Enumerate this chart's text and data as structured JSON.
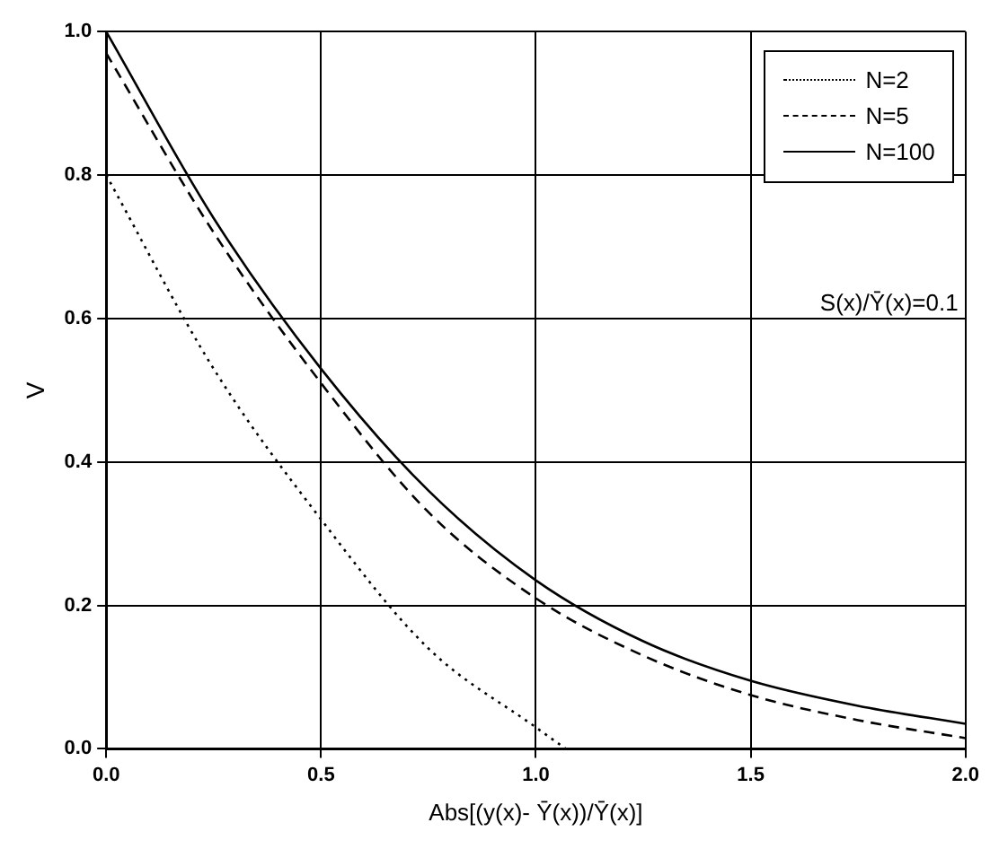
{
  "chart_data": {
    "type": "line",
    "xlabel": "Abs[(y(x)- Ȳ(x))/Ȳ(x)]",
    "ylabel": "V",
    "annotations": [
      "S(x)/Ȳ(x)=0.1"
    ],
    "xlim": [
      0,
      2
    ],
    "ylim": [
      0,
      1
    ],
    "xticks": [
      {
        "value": 0,
        "label": "0.0"
      },
      {
        "value": 0.5,
        "label": "0.5"
      },
      {
        "value": 1,
        "label": "1.0"
      },
      {
        "value": 1.5,
        "label": "1.5"
      },
      {
        "value": 2,
        "label": "2.0"
      }
    ],
    "yticks": [
      {
        "value": 0,
        "label": "0.0"
      },
      {
        "value": 0.2,
        "label": "0.2"
      },
      {
        "value": 0.4,
        "label": "0.4"
      },
      {
        "value": 0.6,
        "label": "0.6"
      },
      {
        "value": 0.8,
        "label": "0.8"
      },
      {
        "value": 1,
        "label": "1.0"
      }
    ],
    "grid": true,
    "legend": "top right",
    "marker": "none",
    "series": [
      {
        "name": "N=2",
        "color": "#000000",
        "line_style": "dotted",
        "x": [
          0,
          0.25,
          0.5,
          0.75,
          1.0,
          1.07
        ],
        "values": [
          0.8,
          0.53,
          0.32,
          0.14,
          0.03,
          0
        ]
      },
      {
        "name": "N=5",
        "color": "#000000",
        "line_style": "dashed",
        "x": [
          0,
          0.25,
          0.5,
          0.75,
          1.0,
          1.25,
          1.5,
          1.75,
          2.0
        ],
        "values": [
          0.97,
          0.72,
          0.51,
          0.33,
          0.21,
          0.13,
          0.075,
          0.04,
          0.015
        ]
      },
      {
        "name": "N=100",
        "color": "#000000",
        "line_style": "solid",
        "x": [
          0,
          0.25,
          0.5,
          0.75,
          1.0,
          1.25,
          1.5,
          1.75,
          2.0
        ],
        "values": [
          1.0,
          0.74,
          0.53,
          0.36,
          0.235,
          0.15,
          0.095,
          0.06,
          0.035
        ]
      }
    ]
  }
}
